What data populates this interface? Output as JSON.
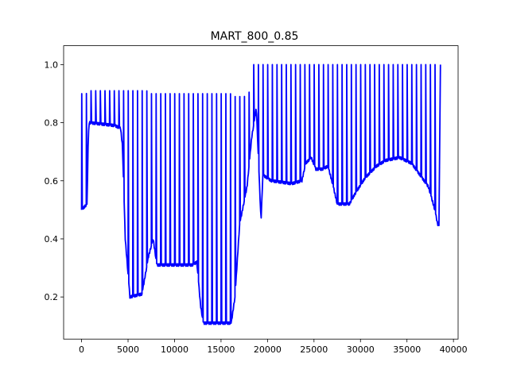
{
  "chart_data": {
    "type": "line",
    "title": "MART_800_0.85",
    "xlabel": "",
    "ylabel": "",
    "xlim": [
      -1930,
      40500
    ],
    "ylim": [
      0.055,
      1.065
    ],
    "x_ticks": [
      0,
      5000,
      10000,
      15000,
      20000,
      25000,
      30000,
      35000,
      40000
    ],
    "x_tick_labels": [
      "0",
      "5000",
      "10000",
      "15000",
      "20000",
      "25000",
      "30000",
      "35000",
      "40000"
    ],
    "y_ticks": [
      0.2,
      0.4,
      0.6,
      0.8,
      1.0
    ],
    "y_tick_labels": [
      "0.2",
      "0.4",
      "0.6",
      "0.8",
      "1.0"
    ],
    "grid": false,
    "legend": "none",
    "series": [
      {
        "color": "#0000ff",
        "cycle_length": 500,
        "baseline": [
          [
            0,
            0.5
          ],
          [
            600,
            0.52
          ],
          [
            700,
            0.72
          ],
          [
            800,
            0.8
          ],
          [
            3600,
            0.79
          ],
          [
            4200,
            0.78
          ],
          [
            4400,
            0.72
          ],
          [
            4700,
            0.4
          ],
          [
            5200,
            0.2
          ],
          [
            6500,
            0.21
          ],
          [
            7200,
            0.34
          ],
          [
            7700,
            0.4
          ],
          [
            8100,
            0.31
          ],
          [
            11900,
            0.31
          ],
          [
            12400,
            0.32
          ],
          [
            12800,
            0.17
          ],
          [
            13100,
            0.11
          ],
          [
            16100,
            0.11
          ],
          [
            16500,
            0.2
          ],
          [
            17000,
            0.45
          ],
          [
            17800,
            0.58
          ],
          [
            18300,
            0.75
          ],
          [
            18800,
            0.85
          ],
          [
            19300,
            0.46
          ],
          [
            19500,
            0.62
          ],
          [
            20400,
            0.6
          ],
          [
            22600,
            0.59
          ],
          [
            23700,
            0.6
          ],
          [
            24100,
            0.66
          ],
          [
            24700,
            0.68
          ],
          [
            25200,
            0.64
          ],
          [
            25900,
            0.64
          ],
          [
            26500,
            0.65
          ],
          [
            27000,
            0.59
          ],
          [
            27500,
            0.52
          ],
          [
            28800,
            0.52
          ],
          [
            29500,
            0.56
          ],
          [
            30500,
            0.61
          ],
          [
            31700,
            0.65
          ],
          [
            32700,
            0.67
          ],
          [
            34200,
            0.68
          ],
          [
            35500,
            0.66
          ],
          [
            36400,
            0.62
          ],
          [
            37300,
            0.58
          ],
          [
            38000,
            0.5
          ],
          [
            38300,
            0.45
          ]
        ],
        "peaks": [
          [
            0,
            0.9
          ],
          [
            500,
            0.9
          ],
          [
            1000,
            0.91
          ],
          [
            1500,
            0.91
          ],
          [
            2000,
            0.91
          ],
          [
            2500,
            0.91
          ],
          [
            3000,
            0.91
          ],
          [
            3500,
            0.91
          ],
          [
            4000,
            0.91
          ],
          [
            4500,
            0.91
          ],
          [
            5000,
            0.91
          ],
          [
            5500,
            0.91
          ],
          [
            6000,
            0.91
          ],
          [
            6500,
            0.91
          ],
          [
            7000,
            0.91
          ],
          [
            7500,
            0.9
          ],
          [
            8000,
            0.9
          ],
          [
            8500,
            0.9
          ],
          [
            9000,
            0.9
          ],
          [
            9500,
            0.9
          ],
          [
            10000,
            0.9
          ],
          [
            10500,
            0.9
          ],
          [
            11000,
            0.9
          ],
          [
            11500,
            0.9
          ],
          [
            12000,
            0.9
          ],
          [
            12500,
            0.9
          ],
          [
            13000,
            0.9
          ],
          [
            13500,
            0.9
          ],
          [
            14000,
            0.9
          ],
          [
            14500,
            0.9
          ],
          [
            15000,
            0.9
          ],
          [
            15500,
            0.9
          ],
          [
            16000,
            0.9
          ],
          [
            16500,
            0.89
          ],
          [
            17000,
            0.89
          ],
          [
            17500,
            0.89
          ],
          [
            18000,
            0.9
          ],
          [
            18400,
            1.0
          ],
          [
            19000,
            1.0
          ],
          [
            38600,
            1.0
          ]
        ]
      }
    ]
  }
}
